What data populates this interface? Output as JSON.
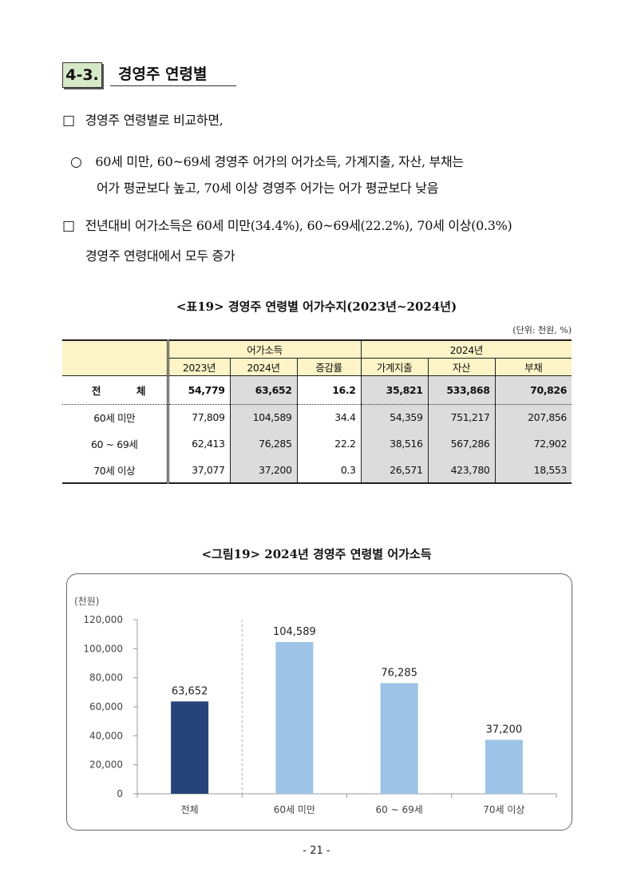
{
  "section": {
    "number": "4-3.",
    "title": "경영주 연령별"
  },
  "paragraphs": {
    "p1": {
      "marker": "□",
      "text": "경영주 연령별로 비교하면,"
    },
    "p2": {
      "marker": "○",
      "line1": "60세 미만, 60~69세 경영주 어가의 어가소득, 가계지출, 자산, 부채는",
      "line2": "어가 평균보다 높고, 70세 이상 경영주 어가는 어가 평균보다 낮음"
    },
    "p3": {
      "marker": "□",
      "line1": "전년대비 어가소득은 60세 미만(34.4%), 60~69세(22.2%), 70세 이상(0.3%)",
      "line2": "경영주 연령대에서 모두 증가"
    }
  },
  "table": {
    "caption": "<표19> 경영주 연령별 어가수지(2023년~2024년)",
    "unit": "(단위: 천원, %)",
    "group_headers": [
      "어가소득",
      "2024년"
    ],
    "col_headers": [
      "2023년",
      "2024년",
      "증감률",
      "가계지출",
      "자산",
      "부채"
    ],
    "total_row": {
      "label_left": "전",
      "label_right": "체",
      "values": [
        "54,779",
        "63,652",
        "16.2",
        "35,821",
        "533,868",
        "70,826"
      ]
    },
    "rows": [
      {
        "label": "60세 미만",
        "values": [
          "77,809",
          "104,589",
          "34.4",
          "54,359",
          "751,217",
          "207,856"
        ]
      },
      {
        "label": "60 ~ 69세",
        "values": [
          "62,413",
          "76,285",
          "22.2",
          "38,516",
          "567,286",
          "72,902"
        ]
      },
      {
        "label": "70세 이상",
        "values": [
          "37,077",
          "37,200",
          "0.3",
          "26,571",
          "423,780",
          "18,553"
        ]
      }
    ]
  },
  "figure": {
    "caption": "<그림19> 2024년 경영주 연령별 어가소득"
  },
  "chart_data": {
    "type": "bar",
    "title": "",
    "ylabel": "(천원)",
    "xlabel": "",
    "categories": [
      "전체",
      "60세 미만",
      "60 ~ 69세",
      "70세 이상"
    ],
    "values": [
      63652,
      104589,
      76285,
      37200
    ],
    "value_labels": [
      "63,652",
      "104,589",
      "76,285",
      "37,200"
    ],
    "ylim": [
      0,
      120000
    ],
    "yticks": [
      0,
      20000,
      40000,
      60000,
      80000,
      100000,
      120000
    ],
    "ytick_labels": [
      "0",
      "20,000",
      "40,000",
      "60,000",
      "80,000",
      "100,000",
      "120,000"
    ],
    "grid": false,
    "colors": [
      "#264478",
      "#9dc3e6",
      "#9dc3e6",
      "#9dc3e6"
    ]
  },
  "page_number": "- 21 -"
}
